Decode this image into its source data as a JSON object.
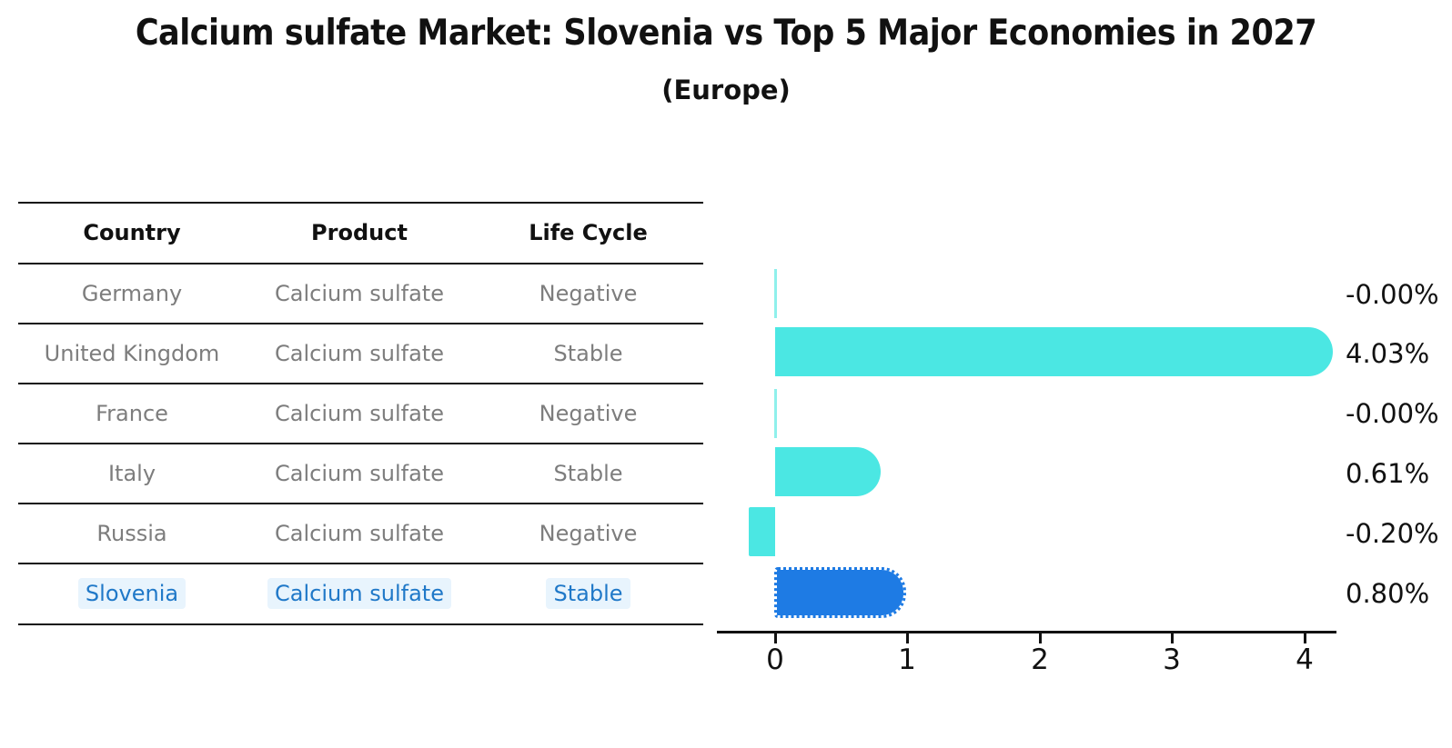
{
  "header": {
    "title": "Calcium sulfate Market: Slovenia vs Top 5 Major Economies in 2027",
    "subtitle": "(Europe)"
  },
  "table": {
    "columns": [
      "Country",
      "Product",
      "Life Cycle"
    ],
    "rows": [
      {
        "country": "Germany",
        "product": "Calcium sulfate",
        "life_cycle": "Negative"
      },
      {
        "country": "United Kingdom",
        "product": "Calcium sulfate",
        "life_cycle": "Stable"
      },
      {
        "country": "France",
        "product": "Calcium sulfate",
        "life_cycle": "Negative"
      },
      {
        "country": "Italy",
        "product": "Calcium sulfate",
        "life_cycle": "Stable"
      },
      {
        "country": "Russia",
        "product": "Calcium sulfate",
        "life_cycle": "Negative"
      },
      {
        "country": "Slovenia",
        "product": "Calcium sulfate",
        "life_cycle": "Stable"
      }
    ],
    "highlight_row": "Slovenia"
  },
  "chart_data": {
    "type": "bar",
    "orientation": "horizontal",
    "title": "Calcium sulfate Market: Slovenia vs Top 5 Major Economies in 2027",
    "subtitle": "(Europe)",
    "categories": [
      "Germany",
      "United Kingdom",
      "France",
      "Italy",
      "Russia",
      "Slovenia"
    ],
    "values": [
      -0.0,
      4.03,
      -0.0,
      0.61,
      -0.2,
      0.8
    ],
    "value_labels": [
      "-0.00%",
      "4.03%",
      "-0.00%",
      "0.61%",
      "-0.20%",
      "0.80%"
    ],
    "unit": "%",
    "xlabel": "",
    "ylabel": "",
    "xlim": [
      -0.45,
      4.25
    ],
    "x_ticks": [
      "0",
      "1",
      "2",
      "3",
      "4"
    ],
    "grid": false,
    "legend": false,
    "colors": {
      "default_bar": "#4BE7E3",
      "highlight_bar": "#1E7BE4",
      "highlight_text": "#1f78c8",
      "table_text": "#7d7d7d",
      "axis": "#111111"
    },
    "highlight_category": "Slovenia",
    "highlight_style": "dotted-border"
  }
}
